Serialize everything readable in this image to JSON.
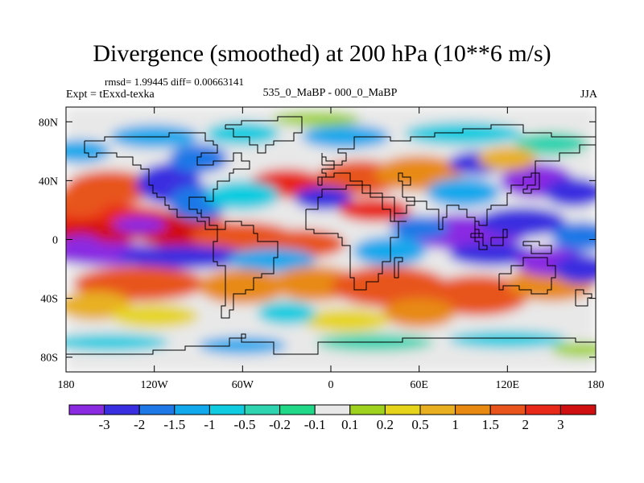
{
  "header": {
    "title": "Divergence (smoothed) at 200 hPa (10**6 m/s)",
    "stats": "rmsd= 1.99445 diff= 0.00663141",
    "experiment": "Expt = tExxd-texka",
    "comparison": "535_0_MaBP - 000_0_MaBP",
    "season": "JJA"
  },
  "chart_data": {
    "type": "heatmap",
    "title": "Divergence (smoothed) at 200 hPa (10**6 m/s)",
    "subtitle": "535_0_MaBP - 000_0_MaBP",
    "xlabel": "",
    "ylabel": "",
    "xlim": [
      -180,
      180
    ],
    "ylim": [
      -90,
      90
    ],
    "x_ticks": [
      {
        "value": -180,
        "label": "180"
      },
      {
        "value": -120,
        "label": "120W"
      },
      {
        "value": -60,
        "label": "60W"
      },
      {
        "value": 0,
        "label": "0"
      },
      {
        "value": 60,
        "label": "60E"
      },
      {
        "value": 120,
        "label": "120E"
      },
      {
        "value": 180,
        "label": "180"
      }
    ],
    "y_ticks": [
      {
        "value": 80,
        "label": "80N"
      },
      {
        "value": 40,
        "label": "40N"
      },
      {
        "value": 0,
        "label": "0"
      },
      {
        "value": -40,
        "label": "40S"
      },
      {
        "value": -80,
        "label": "80S"
      }
    ],
    "colorbar": {
      "levels": [
        "-3",
        "-2",
        "-1.5",
        "-1",
        "-0.5",
        "-0.2",
        "-0.1",
        "0.1",
        "0.2",
        "0.5",
        "1",
        "1.5",
        "2",
        "3"
      ],
      "colors": [
        "#8A2BE2",
        "#3A2FE0",
        "#1E78E6",
        "#12A8EC",
        "#10CCE0",
        "#2ED3B0",
        "#20D888",
        "#E8E8E8",
        "#9ED21E",
        "#E6D41A",
        "#E8B020",
        "#E88A12",
        "#E8541C",
        "#E82818",
        "#D01010"
      ]
    },
    "grid": false
  }
}
